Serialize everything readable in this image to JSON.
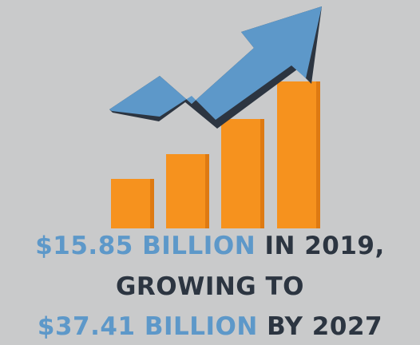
{
  "colors": {
    "background": "#c9cacb",
    "bar_fill": "#f6921e",
    "bar_shade": "#de7a12",
    "arrow_fill": "#5d98c9",
    "arrow_shadow": "#2c3541",
    "highlight_text": "#5d98c9",
    "dark_text": "#2c3541"
  },
  "icons": [
    "bar-chart-icon",
    "trend-up-arrow-icon"
  ],
  "caption": {
    "line1_amount": "$15.85 BILLION",
    "line1_rest": "IN 2019,",
    "line2": "GROWING TO",
    "line3_amount": "$37.41 BILLION",
    "line3_rest": "BY 2027"
  }
}
